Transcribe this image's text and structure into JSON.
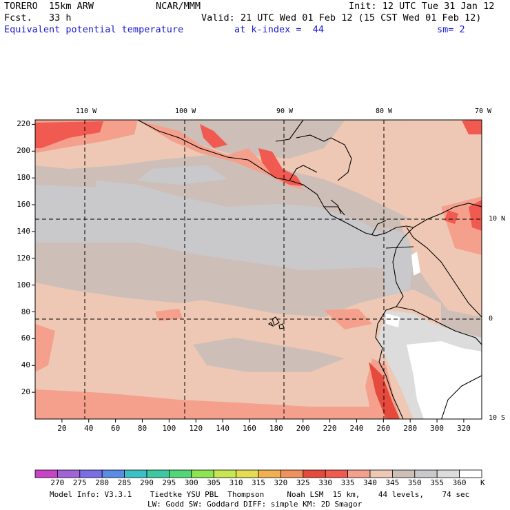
{
  "header": {
    "model": "TORERO  15km ARW",
    "center": "NCAR/MMM",
    "init": "Init: 12 UTC Tue 31 Jan 12",
    "fcst": "Fcst.   33 h",
    "valid": "Valid: 21 UTC Wed 01 Feb 12 (15 CST Wed 01 Feb 12)",
    "field": "Equivalent potential temperature",
    "level": "at k-index =  44",
    "smooth": "sm= 2"
  },
  "map": {
    "lon_labels": [
      "110 W",
      "100 W",
      "90 W",
      "80 W",
      "70 W"
    ],
    "lat_labels": [
      "10 N",
      "0",
      "10 S"
    ],
    "y_ticks": [
      "20",
      "40",
      "60",
      "80",
      "100",
      "120",
      "140",
      "160",
      "180",
      "200",
      "220"
    ],
    "x_ticks": [
      "20",
      "40",
      "60",
      "80",
      "100",
      "120",
      "140",
      "160",
      "180",
      "200",
      "220",
      "240",
      "260",
      "280",
      "300",
      "320"
    ]
  },
  "colorbar": {
    "labels": [
      "270",
      "275",
      "280",
      "285",
      "290",
      "295",
      "300",
      "305",
      "310",
      "315",
      "320",
      "325",
      "330",
      "335",
      "340",
      "345",
      "350",
      "355",
      "360"
    ],
    "unit": "K",
    "colors": [
      "#c843c8",
      "#a064d8",
      "#7a6ee6",
      "#5a8ce6",
      "#3cc0c8",
      "#3cc8a0",
      "#50d878",
      "#8ce650",
      "#c8e650",
      "#e6dc50",
      "#f0b050",
      "#f0905a",
      "#e64a3c",
      "#f05a50",
      "#f4a08c",
      "#eec8b4",
      "#cdbfb7",
      "#c9c9cc",
      "#dcdcdc",
      "#ffffff"
    ]
  },
  "footer": {
    "line1": "Model Info: V3.3.1    Tiedtke YSU PBL  Thompson     Noah LSM  15 km,    44 levels,    74 sec",
    "line2": "LW: Godd SW: Goddard DIFF: simple KM: 2D Smagor"
  }
}
